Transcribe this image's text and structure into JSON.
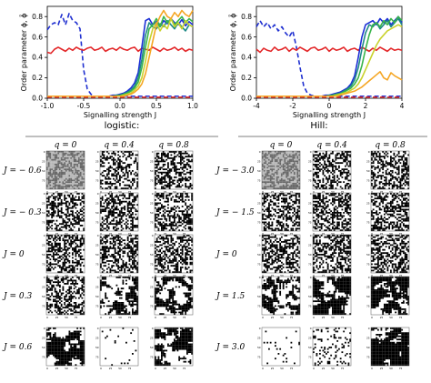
{
  "colors": {
    "blue_dashed": "#1f2fd0",
    "red": "#e3282a",
    "red_dashed": "#e3282a",
    "q_series_1": "#1c2fd6",
    "q_series_2": "#1f8a86",
    "q_series_3": "#39b54a",
    "q_series_4": "#c9d22d",
    "q_series_5": "#f5a623",
    "grid_black": "#000000",
    "grid_gray": "#9a9a9a"
  },
  "chart_data": [
    {
      "id": "logistic_order",
      "type": "line",
      "title": "",
      "xlabel": "Signalling strength J",
      "ylabel": "Order parameter ϕ, ϕ̃",
      "xlim": [
        -1.0,
        1.0
      ],
      "ylim": [
        0.0,
        0.9
      ],
      "xticks": [
        "-1.0",
        "-0.5",
        "0.0",
        "0.5",
        "1.0"
      ],
      "yticks": [
        "0.0",
        "0.2",
        "0.4",
        "0.6",
        "0.8"
      ],
      "x": [
        -1.0,
        -0.95,
        -0.9,
        -0.85,
        -0.8,
        -0.75,
        -0.7,
        -0.65,
        -0.6,
        -0.55,
        -0.5,
        -0.45,
        -0.4,
        -0.35,
        -0.3,
        -0.25,
        -0.2,
        -0.15,
        -0.1,
        -0.05,
        0.0,
        0.05,
        0.1,
        0.15,
        0.2,
        0.25,
        0.3,
        0.35,
        0.4,
        0.45,
        0.5,
        0.55,
        0.6,
        0.65,
        0.7,
        0.75,
        0.8,
        0.85,
        0.9,
        0.95,
        1.0
      ],
      "series": [
        {
          "color_key": "blue_dashed",
          "dash": true,
          "values": [
            0.67,
            0.72,
            0.74,
            0.72,
            0.82,
            0.72,
            0.83,
            0.76,
            0.74,
            0.68,
            0.28,
            0.09,
            0.04,
            0.02,
            0.02,
            0.02,
            0.02,
            0.02,
            0.02,
            0.02,
            0.02,
            0.02,
            0.02,
            0.02,
            0.02,
            0.02,
            0.02,
            0.02,
            0.02,
            0.02,
            0.02,
            0.02,
            0.02,
            0.02,
            0.02,
            0.02,
            0.02,
            0.02,
            0.02,
            0.02,
            0.02
          ]
        },
        {
          "color_key": "red",
          "dash": false,
          "values": [
            0.45,
            0.44,
            0.48,
            0.5,
            0.48,
            0.46,
            0.49,
            0.47,
            0.5,
            0.48,
            0.47,
            0.49,
            0.5,
            0.47,
            0.48,
            0.5,
            0.46,
            0.48,
            0.49,
            0.47,
            0.5,
            0.48,
            0.47,
            0.49,
            0.5,
            0.46,
            0.49,
            0.48,
            0.47,
            0.5,
            0.48,
            0.46,
            0.49,
            0.47,
            0.48,
            0.5,
            0.47,
            0.49,
            0.46,
            0.48,
            0.47
          ]
        },
        {
          "color_key": "red_dashed",
          "dash": true,
          "values": [
            0.01,
            0.01,
            0.01,
            0.01,
            0.01,
            0.01,
            0.01,
            0.01,
            0.01,
            0.01,
            0.01,
            0.01,
            0.01,
            0.01,
            0.01,
            0.01,
            0.01,
            0.01,
            0.01,
            0.01,
            0.01,
            0.01,
            0.01,
            0.01,
            0.01,
            0.01,
            0.01,
            0.01,
            0.01,
            0.01,
            0.01,
            0.01,
            0.01,
            0.01,
            0.01,
            0.01,
            0.01,
            0.01,
            0.01,
            0.01,
            0.01
          ]
        },
        {
          "color_key": "q_series_1",
          "dash": false,
          "values": [
            0.02,
            0.02,
            0.02,
            0.02,
            0.02,
            0.02,
            0.02,
            0.02,
            0.02,
            0.02,
            0.02,
            0.02,
            0.02,
            0.02,
            0.02,
            0.02,
            0.02,
            0.02,
            0.03,
            0.03,
            0.04,
            0.05,
            0.07,
            0.1,
            0.15,
            0.25,
            0.5,
            0.76,
            0.78,
            0.72,
            0.75,
            0.7,
            0.76,
            0.73,
            0.78,
            0.74,
            0.72,
            0.77,
            0.71,
            0.75,
            0.72
          ]
        },
        {
          "color_key": "q_series_2",
          "dash": false,
          "values": [
            0.02,
            0.02,
            0.02,
            0.02,
            0.02,
            0.02,
            0.02,
            0.02,
            0.02,
            0.02,
            0.02,
            0.02,
            0.02,
            0.02,
            0.02,
            0.02,
            0.02,
            0.02,
            0.02,
            0.03,
            0.03,
            0.04,
            0.06,
            0.08,
            0.12,
            0.2,
            0.38,
            0.62,
            0.74,
            0.7,
            0.68,
            0.73,
            0.7,
            0.76,
            0.72,
            0.68,
            0.74,
            0.7,
            0.66,
            0.72,
            0.7
          ]
        },
        {
          "color_key": "q_series_3",
          "dash": false,
          "values": [
            0.02,
            0.02,
            0.02,
            0.02,
            0.02,
            0.02,
            0.02,
            0.02,
            0.02,
            0.02,
            0.02,
            0.02,
            0.02,
            0.02,
            0.02,
            0.02,
            0.02,
            0.02,
            0.02,
            0.02,
            0.03,
            0.04,
            0.05,
            0.07,
            0.1,
            0.16,
            0.3,
            0.5,
            0.68,
            0.72,
            0.78,
            0.7,
            0.8,
            0.74,
            0.78,
            0.72,
            0.76,
            0.8,
            0.74,
            0.78,
            0.75
          ]
        },
        {
          "color_key": "q_series_4",
          "dash": false,
          "values": [
            0.02,
            0.02,
            0.02,
            0.02,
            0.02,
            0.02,
            0.02,
            0.02,
            0.02,
            0.02,
            0.02,
            0.02,
            0.02,
            0.02,
            0.02,
            0.02,
            0.02,
            0.02,
            0.02,
            0.02,
            0.02,
            0.03,
            0.04,
            0.05,
            0.08,
            0.12,
            0.2,
            0.36,
            0.55,
            0.68,
            0.74,
            0.66,
            0.72,
            0.68,
            0.78,
            0.7,
            0.74,
            0.68,
            0.76,
            0.72,
            0.7
          ]
        },
        {
          "color_key": "q_series_5",
          "dash": false,
          "values": [
            0.02,
            0.02,
            0.02,
            0.02,
            0.02,
            0.02,
            0.02,
            0.02,
            0.02,
            0.02,
            0.02,
            0.02,
            0.02,
            0.02,
            0.02,
            0.02,
            0.02,
            0.02,
            0.02,
            0.02,
            0.02,
            0.02,
            0.03,
            0.04,
            0.06,
            0.09,
            0.14,
            0.24,
            0.4,
            0.56,
            0.72,
            0.8,
            0.86,
            0.8,
            0.78,
            0.84,
            0.8,
            0.86,
            0.82,
            0.8,
            0.86
          ]
        }
      ]
    },
    {
      "id": "hill_order",
      "type": "line",
      "title": "",
      "xlabel": "Signalling strength J",
      "ylabel": "Order parameter ϕ, ϕ̃",
      "xlim": [
        -4.0,
        4.0
      ],
      "ylim": [
        0.0,
        0.9
      ],
      "xticks": [
        "-4",
        "-2",
        "0",
        "2",
        "4"
      ],
      "yticks": [
        "0.0",
        "0.2",
        "0.4",
        "0.6",
        "0.8"
      ],
      "x": [
        -4.0,
        -3.8,
        -3.6,
        -3.4,
        -3.2,
        -3.0,
        -2.8,
        -2.6,
        -2.4,
        -2.2,
        -2.0,
        -1.8,
        -1.6,
        -1.4,
        -1.2,
        -1.0,
        -0.8,
        -0.6,
        -0.4,
        -0.2,
        0.0,
        0.2,
        0.4,
        0.6,
        0.8,
        1.0,
        1.2,
        1.4,
        1.6,
        1.8,
        2.0,
        2.2,
        2.4,
        2.6,
        2.8,
        3.0,
        3.2,
        3.4,
        3.6,
        3.8,
        4.0
      ],
      "series": [
        {
          "color_key": "blue_dashed",
          "dash": true,
          "values": [
            0.7,
            0.76,
            0.7,
            0.74,
            0.68,
            0.72,
            0.66,
            0.7,
            0.64,
            0.6,
            0.66,
            0.5,
            0.3,
            0.12,
            0.05,
            0.03,
            0.02,
            0.02,
            0.02,
            0.02,
            0.02,
            0.02,
            0.02,
            0.02,
            0.02,
            0.02,
            0.02,
            0.02,
            0.02,
            0.02,
            0.02,
            0.02,
            0.02,
            0.02,
            0.02,
            0.02,
            0.02,
            0.02,
            0.02,
            0.02,
            0.02
          ]
        },
        {
          "color_key": "red",
          "dash": false,
          "values": [
            0.48,
            0.45,
            0.49,
            0.47,
            0.46,
            0.5,
            0.47,
            0.48,
            0.5,
            0.46,
            0.49,
            0.47,
            0.5,
            0.48,
            0.46,
            0.49,
            0.5,
            0.47,
            0.48,
            0.5,
            0.46,
            0.49,
            0.47,
            0.48,
            0.5,
            0.46,
            0.48,
            0.49,
            0.47,
            0.5,
            0.48,
            0.46,
            0.49,
            0.47,
            0.5,
            0.48,
            0.46,
            0.49,
            0.47,
            0.48,
            0.47
          ]
        },
        {
          "color_key": "red_dashed",
          "dash": true,
          "values": [
            0.01,
            0.01,
            0.01,
            0.01,
            0.01,
            0.01,
            0.01,
            0.01,
            0.01,
            0.01,
            0.01,
            0.01,
            0.01,
            0.01,
            0.01,
            0.01,
            0.01,
            0.01,
            0.01,
            0.01,
            0.01,
            0.01,
            0.01,
            0.01,
            0.01,
            0.01,
            0.01,
            0.01,
            0.01,
            0.01,
            0.01,
            0.01,
            0.01,
            0.01,
            0.01,
            0.01,
            0.01,
            0.01,
            0.01,
            0.01,
            0.01
          ]
        },
        {
          "color_key": "q_series_1",
          "dash": false,
          "values": [
            0.02,
            0.02,
            0.02,
            0.02,
            0.02,
            0.02,
            0.02,
            0.02,
            0.02,
            0.02,
            0.02,
            0.02,
            0.02,
            0.02,
            0.02,
            0.02,
            0.02,
            0.02,
            0.02,
            0.03,
            0.03,
            0.04,
            0.05,
            0.06,
            0.08,
            0.1,
            0.14,
            0.22,
            0.4,
            0.6,
            0.72,
            0.74,
            0.76,
            0.72,
            0.78,
            0.74,
            0.78,
            0.72,
            0.76,
            0.8,
            0.74
          ]
        },
        {
          "color_key": "q_series_2",
          "dash": false,
          "values": [
            0.02,
            0.02,
            0.02,
            0.02,
            0.02,
            0.02,
            0.02,
            0.02,
            0.02,
            0.02,
            0.02,
            0.02,
            0.02,
            0.02,
            0.02,
            0.02,
            0.02,
            0.02,
            0.02,
            0.02,
            0.03,
            0.03,
            0.04,
            0.05,
            0.07,
            0.09,
            0.12,
            0.18,
            0.3,
            0.48,
            0.64,
            0.72,
            0.7,
            0.74,
            0.68,
            0.72,
            0.76,
            0.7,
            0.74,
            0.78,
            0.72
          ]
        },
        {
          "color_key": "q_series_3",
          "dash": false,
          "values": [
            0.02,
            0.02,
            0.02,
            0.02,
            0.02,
            0.02,
            0.02,
            0.02,
            0.02,
            0.02,
            0.02,
            0.02,
            0.02,
            0.02,
            0.02,
            0.02,
            0.02,
            0.02,
            0.02,
            0.02,
            0.02,
            0.03,
            0.04,
            0.04,
            0.06,
            0.08,
            0.1,
            0.14,
            0.2,
            0.32,
            0.48,
            0.62,
            0.72,
            0.74,
            0.7,
            0.76,
            0.72,
            0.78,
            0.74,
            0.8,
            0.76
          ]
        },
        {
          "color_key": "q_series_4",
          "dash": false,
          "values": [
            0.02,
            0.02,
            0.02,
            0.02,
            0.02,
            0.02,
            0.02,
            0.02,
            0.02,
            0.02,
            0.02,
            0.02,
            0.02,
            0.02,
            0.02,
            0.02,
            0.02,
            0.02,
            0.02,
            0.02,
            0.02,
            0.02,
            0.03,
            0.04,
            0.05,
            0.06,
            0.08,
            0.1,
            0.14,
            0.2,
            0.28,
            0.36,
            0.44,
            0.52,
            0.58,
            0.62,
            0.66,
            0.68,
            0.7,
            0.72,
            0.7
          ]
        },
        {
          "color_key": "q_series_5",
          "dash": false,
          "values": [
            0.02,
            0.02,
            0.02,
            0.02,
            0.02,
            0.02,
            0.02,
            0.02,
            0.02,
            0.02,
            0.02,
            0.02,
            0.02,
            0.02,
            0.02,
            0.02,
            0.02,
            0.02,
            0.02,
            0.02,
            0.02,
            0.02,
            0.02,
            0.03,
            0.04,
            0.05,
            0.06,
            0.07,
            0.09,
            0.11,
            0.14,
            0.17,
            0.2,
            0.23,
            0.26,
            0.2,
            0.18,
            0.25,
            0.22,
            0.2,
            0.18
          ]
        }
      ]
    }
  ],
  "snapshots": {
    "tick_labels_x": [
      "0",
      "25",
      "50",
      "75"
    ],
    "tick_labels_y": [
      "0",
      "25",
      "50",
      "75"
    ],
    "panels": [
      {
        "title": "logistic:",
        "columns": [
          "q = 0",
          "q = 0.4",
          "q = 0.8"
        ],
        "rows": [
          "J = − 0.6",
          "J = − 0.3",
          "J = 0",
          "J = 0.3",
          "J = 0.6"
        ]
      },
      {
        "title": "Hill:",
        "columns": [
          "q = 0",
          "q = 0.4",
          "q = 0.8"
        ],
        "rows": [
          "J = − 3.0",
          "J = − 1.5",
          "J = 0",
          "J = 1.5",
          "J = 3.0"
        ]
      }
    ],
    "patterns": [
      [
        "checker-gray",
        "random",
        "random",
        "random",
        "blob-white"
      ],
      [
        "random",
        "random",
        "random",
        "coarse",
        "sparse-white"
      ],
      [
        "random",
        "random",
        "random",
        "coarse",
        "blob-black"
      ],
      [
        "checker-gray",
        "random",
        "random",
        "coarse",
        "sparse-white"
      ],
      [
        "random",
        "random",
        "random",
        "blob-white",
        "dense-white"
      ],
      [
        "random",
        "random",
        "random",
        "blob-black",
        "blob-white"
      ]
    ]
  }
}
